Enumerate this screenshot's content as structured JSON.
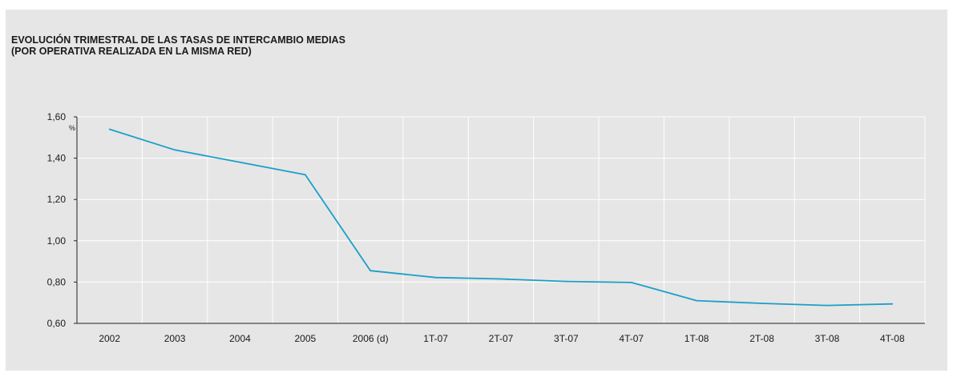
{
  "chart_data": {
    "type": "line",
    "title": "EVOLUCIÓN TRIMESTRAL DE LAS TASAS DE INTERCAMBIO MEDIAS",
    "subtitle": "(POR OPERATIVA REALIZADA EN LA MISMA RED)",
    "ylabel": "%",
    "xlabel": "",
    "categories": [
      "2002",
      "2003",
      "2004",
      "2005",
      "2006 (d)",
      "1T-07",
      "2T-07",
      "3T-07",
      "4T-07",
      "1T-08",
      "2T-08",
      "3T-08",
      "4T-08"
    ],
    "series": [
      {
        "values": [
          1.54,
          1.44,
          1.38,
          1.32,
          0.855,
          0.822,
          0.815,
          0.803,
          0.798,
          0.71,
          0.697,
          0.687,
          0.694
        ],
        "color": "#1a9fc9"
      }
    ],
    "ylim": [
      0.6,
      1.6
    ],
    "yticks": [
      0.6,
      0.8,
      1.0,
      1.2,
      1.4,
      1.6
    ],
    "ytick_labels": [
      "0,60",
      "0,80",
      "1,00",
      "1,20",
      "1,40",
      "1,60"
    ],
    "grid": "vertical and horizontal",
    "legend": "none"
  }
}
